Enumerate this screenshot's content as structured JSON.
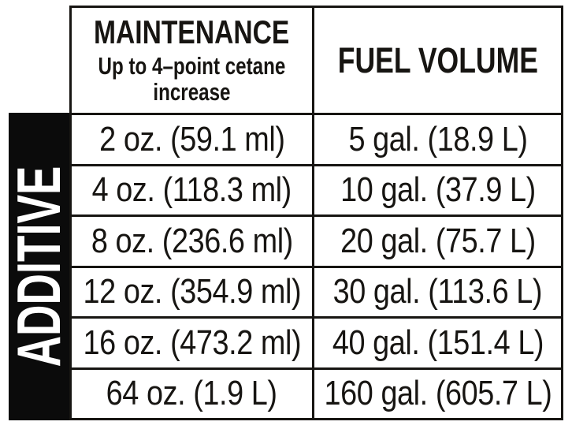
{
  "colors": {
    "background": "#ffffff",
    "ink": "#171512",
    "bar": "#0b0b0b",
    "sidebar_text": "#ffffff"
  },
  "side_label": "ADDITIVE",
  "table": {
    "header": {
      "maintenance_title": "MAINTENANCE",
      "maintenance_subtitle_line1": "Up to 4–point cetane",
      "maintenance_subtitle_line2": "increase",
      "fuel_volume_title": "FUEL VOLUME"
    },
    "rows": [
      {
        "additive": "2 oz. (59.1 ml)",
        "fuel": "5 gal. (18.9 L)"
      },
      {
        "additive": "4 oz. (118.3 ml)",
        "fuel": "10 gal. (37.9 L)"
      },
      {
        "additive": "8 oz. (236.6 ml)",
        "fuel": "20 gal. (75.7 L)"
      },
      {
        "additive": "12 oz. (354.9 ml)",
        "fuel": "30 gal. (113.6 L)"
      },
      {
        "additive": "16 oz. (473.2 ml)",
        "fuel": "40 gal. (151.4 L)"
      },
      {
        "additive": "64 oz. (1.9 L)",
        "fuel": "160 gal. (605.7 L)"
      }
    ]
  }
}
